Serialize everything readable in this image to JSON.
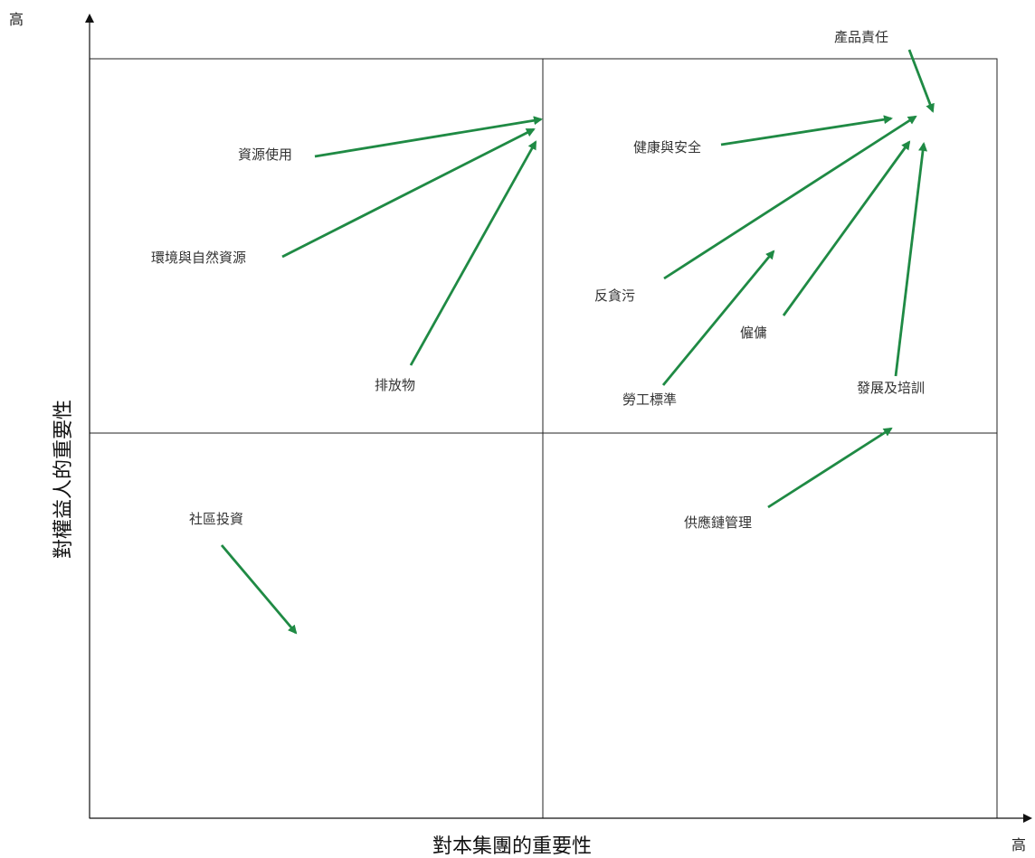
{
  "axes": {
    "x_title": "對本集團的重要性",
    "y_title": "對權益人的重要性",
    "x_high": "高",
    "y_high": "高"
  },
  "colors": {
    "arrow": "#1f8a44",
    "grid": "#222222"
  },
  "topics": [
    {
      "id": "product-responsibility",
      "label": "產品責任"
    },
    {
      "id": "health-safety",
      "label": "健康與安全"
    },
    {
      "id": "resource-use",
      "label": "資源使用"
    },
    {
      "id": "environment-resources",
      "label": "環境與自然資源"
    },
    {
      "id": "anti-corruption",
      "label": "反貪污"
    },
    {
      "id": "employment",
      "label": "僱傭"
    },
    {
      "id": "emissions",
      "label": "排放物"
    },
    {
      "id": "labour-standards",
      "label": "勞工標準"
    },
    {
      "id": "development-training",
      "label": "發展及培訓"
    },
    {
      "id": "community-investment",
      "label": "社區投資"
    },
    {
      "id": "supply-chain",
      "label": "供應鏈管理"
    }
  ]
}
